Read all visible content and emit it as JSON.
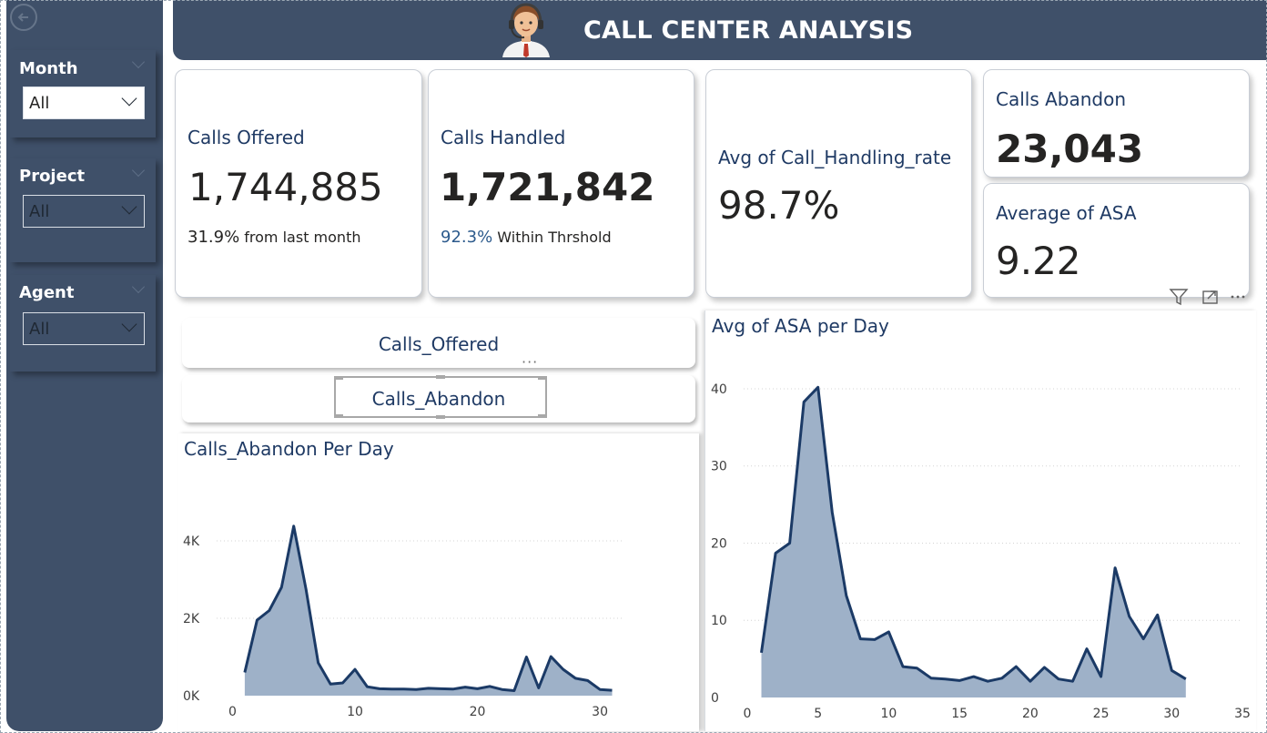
{
  "header": {
    "title": "CALL CENTER ANALYSIS",
    "avatar_icon": "call-agent-avatar-icon"
  },
  "sidebar": {
    "back_icon": "back-arrow-icon",
    "slicers": [
      {
        "title": "Month",
        "value": "All"
      },
      {
        "title": "Project",
        "value": "All"
      },
      {
        "title": "Agent",
        "value": "All"
      }
    ]
  },
  "cards": {
    "calls_offered": {
      "title": "Calls Offered",
      "value": "1,744,885",
      "sub_value": "31.9%",
      "sub_label": "from last month"
    },
    "calls_handled": {
      "title": "Calls Handled",
      "value": "1,721,842",
      "sub_value": "92.3%",
      "sub_label": "Within Thrshold"
    },
    "handling_rate": {
      "title": "Avg of Call_Handling_rate",
      "value": "98.7%"
    },
    "calls_abandon": {
      "title": "Calls Abandon",
      "value": "23,043"
    },
    "avg_asa": {
      "title": "Average of ASA",
      "value": "9.22"
    }
  },
  "buttons": {
    "offered": "Calls_Offered",
    "abandon": "Calls_Abandon",
    "more": "···"
  },
  "visual_header": {
    "icons": [
      "filter-icon",
      "focus-mode-icon",
      "more-options-icon"
    ]
  },
  "colors": {
    "navy": "#3f5069",
    "title_blue": "#1f3a64",
    "series_line": "#1b3a66",
    "series_fill": "#9eb1c8"
  },
  "chart_data": [
    {
      "type": "area",
      "title": "Calls_Abandon Per Day",
      "xlabel": "",
      "ylabel": "",
      "x": [
        1,
        2,
        3,
        4,
        5,
        6,
        7,
        8,
        9,
        10,
        11,
        12,
        13,
        14,
        15,
        16,
        17,
        18,
        19,
        20,
        21,
        22,
        23,
        24,
        25,
        26,
        27,
        28,
        29,
        30,
        31
      ],
      "values": [
        600,
        1950,
        2200,
        2800,
        4380,
        2750,
        850,
        300,
        330,
        680,
        230,
        180,
        170,
        170,
        160,
        190,
        180,
        170,
        220,
        180,
        240,
        160,
        130,
        1000,
        200,
        1010,
        680,
        450,
        390,
        160,
        140
      ],
      "xlim": [
        -1,
        32
      ],
      "xticks": [
        0,
        10,
        20,
        30
      ],
      "ylim": [
        0,
        4800
      ],
      "yticks": [
        0,
        2000,
        4000
      ],
      "ytick_labels": [
        "0K",
        "2K",
        "4K"
      ],
      "grid": true,
      "legend": "none"
    },
    {
      "type": "area",
      "title": "Avg of ASA per Day",
      "xlabel": "",
      "ylabel": "",
      "x": [
        1,
        2,
        3,
        4,
        5,
        6,
        7,
        8,
        9,
        10,
        11,
        12,
        13,
        14,
        15,
        16,
        17,
        18,
        19,
        20,
        21,
        22,
        23,
        24,
        25,
        26,
        27,
        28,
        29,
        30,
        31
      ],
      "values": [
        5.8,
        18.7,
        20.0,
        38.3,
        40.2,
        24.0,
        13.2,
        7.6,
        7.5,
        8.5,
        4.0,
        3.8,
        2.5,
        2.4,
        2.2,
        2.7,
        2.1,
        2.5,
        4.0,
        2.1,
        3.9,
        2.4,
        2.1,
        6.3,
        2.7,
        16.8,
        10.5,
        7.6,
        10.7,
        3.5,
        2.4
      ],
      "xlim": [
        0,
        35
      ],
      "xticks": [
        0,
        5,
        10,
        15,
        20,
        25,
        30,
        35
      ],
      "ylim": [
        0,
        42
      ],
      "yticks": [
        0,
        10,
        20,
        30,
        40
      ],
      "grid": true,
      "legend": "none"
    }
  ]
}
